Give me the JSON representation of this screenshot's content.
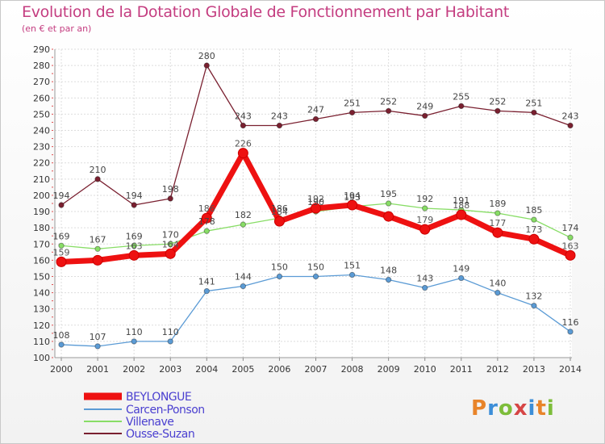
{
  "title": "Evolution de la Dotation Globale de Fonctionnement par Habitant",
  "subtitle": "(en € et par an)",
  "logo": {
    "text": "Proxiti",
    "colors": [
      "#e8842a",
      "#3c8ed8",
      "#7dbd3a",
      "#d64545",
      "#3c8ed8",
      "#e8842a",
      "#7dbd3a"
    ]
  },
  "chart_data": {
    "type": "line",
    "x": [
      "2000",
      "2001",
      "2002",
      "2003",
      "2004",
      "2005",
      "2006",
      "2007",
      "2008",
      "2009",
      "2010",
      "2011",
      "2012",
      "2013",
      "2014"
    ],
    "ylim": [
      100,
      290
    ],
    "yticks": [
      100,
      110,
      120,
      130,
      140,
      150,
      160,
      170,
      180,
      190,
      200,
      210,
      220,
      230,
      240,
      250,
      260,
      270,
      280,
      290
    ],
    "grid": true,
    "legend_position": "bottom-left",
    "series": [
      {
        "name": "BEYLONGUE",
        "color": "#ee1111",
        "labelColor": "#555555",
        "values": [
          159,
          160,
          163,
          164,
          186,
          226,
          184,
          192,
          194,
          187,
          179,
          188,
          177,
          173,
          163
        ],
        "labels": [
          "159",
          "",
          "163",
          "164",
          "186",
          "226",
          "184",
          "192",
          "194",
          "",
          "179",
          "188",
          "177",
          "173",
          "163"
        ]
      },
      {
        "name": "Carcen-Ponson",
        "color": "#5b9bd5",
        "labelColor": "#444444",
        "values": [
          108,
          107,
          110,
          110,
          141,
          144,
          150,
          150,
          151,
          148,
          143,
          149,
          140,
          132,
          116
        ],
        "labels": [
          "108",
          "107",
          "110",
          "110",
          "141",
          "144",
          "150",
          "150",
          "151",
          "148",
          "143",
          "149",
          "140",
          "132",
          "116"
        ]
      },
      {
        "name": "Villenave",
        "color": "#88dd66",
        "labelColor": "#444444",
        "values": [
          169,
          167,
          169,
          170,
          178,
          182,
          186,
          190,
          193,
          195,
          192,
          191,
          189,
          185,
          174
        ],
        "labels": [
          "169",
          "167",
          "169",
          "170",
          "178",
          "182",
          "186",
          "190",
          "193",
          "195",
          "192",
          "191",
          "189",
          "185",
          "174"
        ]
      },
      {
        "name": "Ousse-Suzan",
        "color": "#7a2030",
        "labelColor": "#444444",
        "values": [
          194,
          210,
          194,
          198,
          280,
          243,
          243,
          247,
          251,
          252,
          249,
          255,
          252,
          251,
          243
        ],
        "labels": [
          "194",
          "210",
          "194",
          "198",
          "280",
          "243",
          "243",
          "247",
          "251",
          "252",
          "249",
          "255",
          "252",
          "251",
          "243"
        ]
      }
    ]
  }
}
